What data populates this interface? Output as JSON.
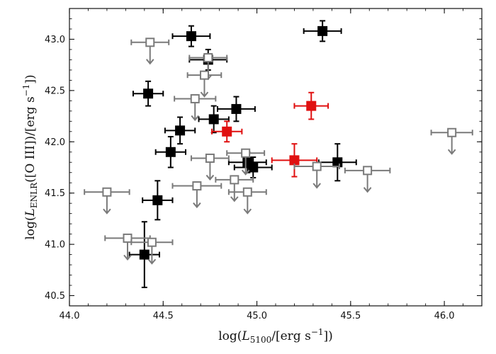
{
  "chart_data": {
    "type": "scatter",
    "title": "",
    "xlabel": "log(L5100/[erg s−1])",
    "ylabel": "log(LENLR([O III])/[erg s−1])",
    "xlabel_parts": {
      "pre": "log(",
      "sym": "L",
      "sub": "5100",
      "post": "/[erg s",
      "sup": "−1",
      "end": "])"
    },
    "ylabel_parts": {
      "pre": "log(",
      "sym": "L",
      "sub": "ENLR",
      "post": "([O III])/[erg s",
      "sup": "−1",
      "end": "])"
    },
    "xlim": [
      44.0,
      46.2
    ],
    "ylim": [
      40.4,
      43.3
    ],
    "xticks": [
      44.0,
      44.5,
      45.0,
      45.5,
      46.0
    ],
    "xtick_labels": [
      "44.0",
      "44.5",
      "45.0",
      "45.5",
      "46.0"
    ],
    "yticks": [
      40.5,
      41.0,
      41.5,
      42.0,
      42.5,
      43.0
    ],
    "ytick_labels": [
      "40.5",
      "41.0",
      "41.5",
      "42.0",
      "42.5",
      "43.0"
    ],
    "grid": false,
    "series": [
      {
        "marker": "filled-square",
        "color": "#000000",
        "upper_limit": false,
        "points": [
          {
            "x": 44.65,
            "y": 43.03,
            "xerr": 0.1,
            "yerr": 0.1
          },
          {
            "x": 45.35,
            "y": 43.08,
            "xerr": 0.1,
            "yerr": 0.1
          },
          {
            "x": 44.74,
            "y": 42.8,
            "xerr": 0.1,
            "yerr": 0.1
          },
          {
            "x": 44.42,
            "y": 42.47,
            "xerr": 0.08,
            "yerr": 0.12
          },
          {
            "x": 44.89,
            "y": 42.32,
            "xerr": 0.1,
            "yerr": 0.12
          },
          {
            "x": 44.77,
            "y": 42.22,
            "xerr": 0.08,
            "yerr": 0.13
          },
          {
            "x": 44.59,
            "y": 42.11,
            "xerr": 0.08,
            "yerr": 0.13
          },
          {
            "x": 44.54,
            "y": 41.9,
            "xerr": 0.08,
            "yerr": 0.15
          },
          {
            "x": 44.95,
            "y": 41.8,
            "xerr": 0.1,
            "yerr": 0.1
          },
          {
            "x": 44.98,
            "y": 41.75,
            "xerr": 0.1,
            "yerr": 0.1
          },
          {
            "x": 45.43,
            "y": 41.8,
            "xerr": 0.1,
            "yerr": 0.18
          },
          {
            "x": 44.47,
            "y": 41.43,
            "xerr": 0.08,
            "yerr": 0.19
          },
          {
            "x": 44.4,
            "y": 40.9,
            "xerr": 0.08,
            "yerr": 0.32
          }
        ]
      },
      {
        "marker": "filled-square",
        "color": "#e01010",
        "upper_limit": false,
        "points": [
          {
            "x": 45.29,
            "y": 42.35,
            "xerr": 0.09,
            "yerr": 0.13
          },
          {
            "x": 44.84,
            "y": 42.1,
            "xerr": 0.08,
            "yerr": 0.1
          },
          {
            "x": 45.2,
            "y": 41.82,
            "xerr": 0.12,
            "yerr": 0.16
          }
        ]
      },
      {
        "marker": "open-square",
        "color": "#7a7a7a",
        "upper_limit": true,
        "points": [
          {
            "x": 44.43,
            "y": 42.97,
            "xerr": 0.1
          },
          {
            "x": 44.74,
            "y": 42.82,
            "xerr": 0.1
          },
          {
            "x": 44.72,
            "y": 42.65,
            "xerr": 0.09
          },
          {
            "x": 44.67,
            "y": 42.42,
            "xerr": 0.11
          },
          {
            "x": 44.94,
            "y": 41.89,
            "xerr": 0.1
          },
          {
            "x": 44.75,
            "y": 41.84,
            "xerr": 0.1
          },
          {
            "x": 45.32,
            "y": 41.76,
            "xerr": 0.12
          },
          {
            "x": 45.59,
            "y": 41.72,
            "xerr": 0.12
          },
          {
            "x": 46.04,
            "y": 42.09,
            "xerr": 0.11
          },
          {
            "x": 44.88,
            "y": 41.63,
            "xerr": 0.1
          },
          {
            "x": 44.68,
            "y": 41.57,
            "xerr": 0.13
          },
          {
            "x": 44.95,
            "y": 41.51,
            "xerr": 0.1
          },
          {
            "x": 44.2,
            "y": 41.51,
            "xerr": 0.12
          },
          {
            "x": 44.31,
            "y": 41.06,
            "xerr": 0.12
          },
          {
            "x": 44.44,
            "y": 41.02,
            "xerr": 0.11
          }
        ]
      }
    ]
  }
}
